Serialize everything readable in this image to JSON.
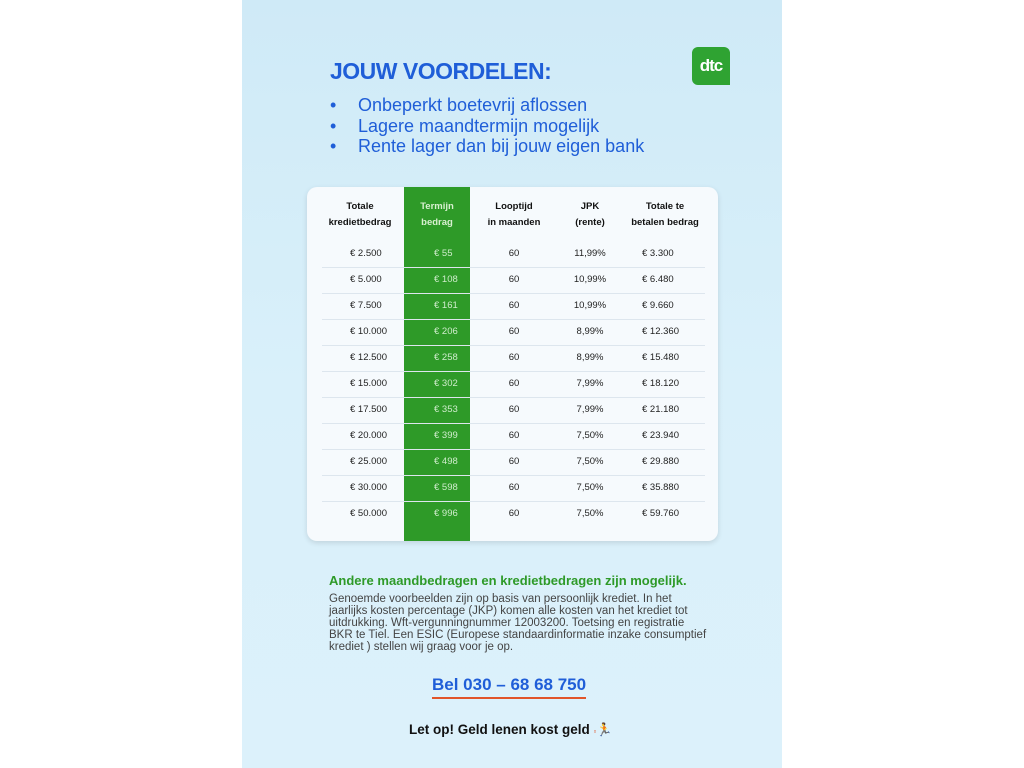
{
  "title": "JOUW VOORDELEN:",
  "logo": "dtc",
  "bullets": [
    "Onbeperkt boetevrij aflossen",
    "Lagere maandtermijn mogelijk",
    "Rente lager dan bij jouw eigen bank"
  ],
  "table": {
    "headers": [
      [
        "Totale",
        "kredietbedrag"
      ],
      [
        "Termijn",
        "bedrag"
      ],
      [
        "Looptijd",
        "in maanden"
      ],
      [
        "JPK",
        "(rente)"
      ],
      [
        "Totale te",
        "betalen bedrag"
      ]
    ],
    "rows": [
      [
        "€ 2.500",
        "€ 55",
        "60",
        "11,99%",
        "€ 3.300"
      ],
      [
        "€ 5.000",
        "€ 108",
        "60",
        "10,99%",
        "€ 6.480"
      ],
      [
        "€ 7.500",
        "€ 161",
        "60",
        "10,99%",
        "€ 9.660"
      ],
      [
        "€ 10.000",
        "€ 206",
        "60",
        "8,99%",
        "€ 12.360"
      ],
      [
        "€ 12.500",
        "€ 258",
        "60",
        "8,99%",
        "€ 15.480"
      ],
      [
        "€ 15.000",
        "€ 302",
        "60",
        "7,99%",
        "€ 18.120"
      ],
      [
        "€ 17.500",
        "€ 353",
        "60",
        "7,99%",
        "€ 21.180"
      ],
      [
        "€ 20.000",
        "€ 399",
        "60",
        "7,50%",
        "€ 23.940"
      ],
      [
        "€ 25.000",
        "€ 498",
        "60",
        "7,50%",
        "€ 29.880"
      ],
      [
        "€ 30.000",
        "€ 598",
        "60",
        "7,50%",
        "€ 35.880"
      ],
      [
        "€ 50.000",
        "€ 996",
        "60",
        "7,50%",
        "€ 59.760"
      ]
    ]
  },
  "note_heading": "Andere maandbedragen en kredietbedragen zijn mogelijk.",
  "note_text": "Genoemde voorbeelden zijn op basis van persoonlijk krediet. In het jaarlijks kosten percentage (JKP) komen alle kosten van het krediet tot uitdrukking. Wft-vergunningnummer 12003200. Toetsing en registratie BKR te Tiel. Een ESIC (Europese standaardinformatie inzake consumptief krediet ) stellen wij graag voor je op.",
  "phone": "Bel 030 – 68 68 750",
  "warning": "Let op! Geld lenen kost geld",
  "colors": {
    "blue": "#1f5ed8",
    "green": "#2e9a28",
    "underline": "#e1552a"
  }
}
